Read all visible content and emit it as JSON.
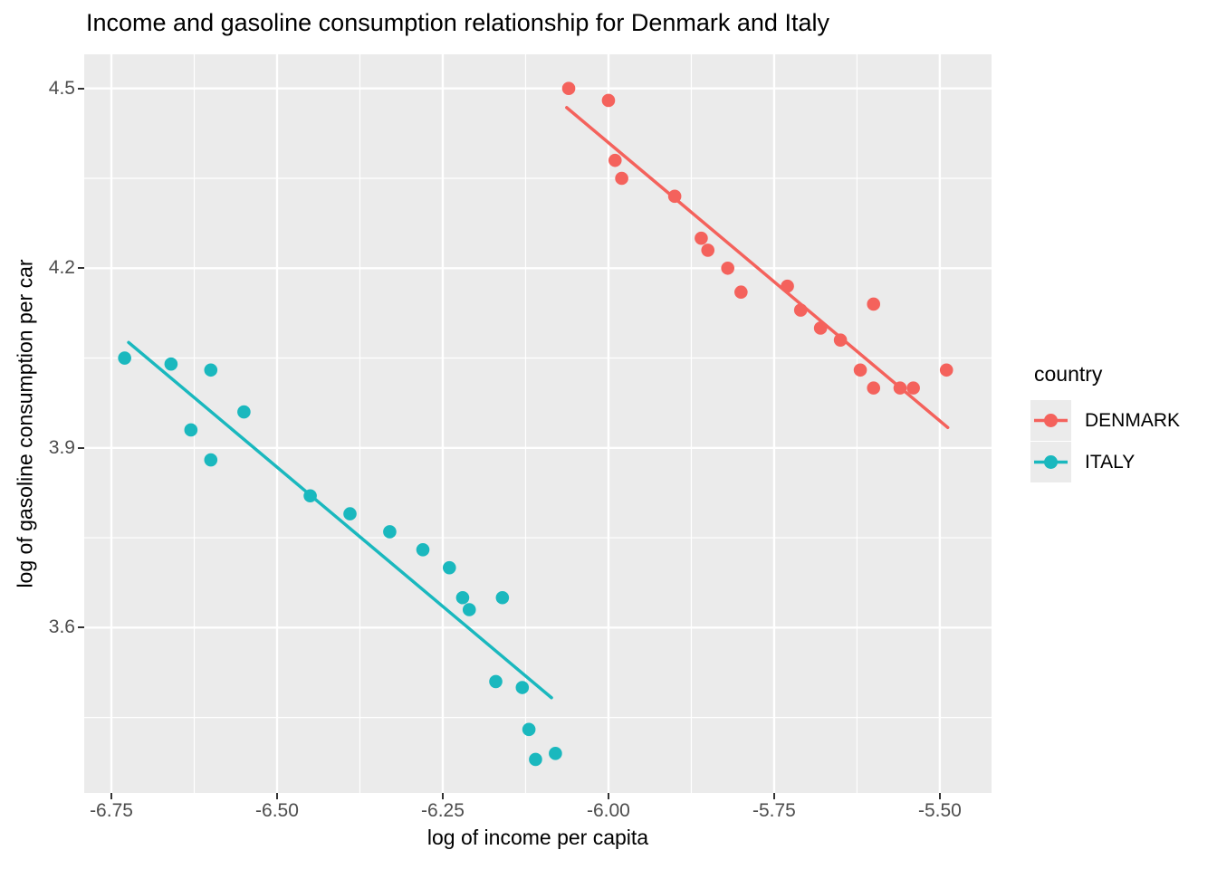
{
  "chart_data": {
    "type": "scatter",
    "title": "Income and gasoline consumption relationship for Denmark and Italy",
    "xlabel": "log of income per capita",
    "ylabel": "log of gasoline consumption per car",
    "xlim": [
      -6.791,
      -5.422
    ],
    "ylim": [
      3.324,
      4.557
    ],
    "x_ticks": [
      -6.75,
      -6.5,
      -6.25,
      -6.0,
      -5.75,
      -5.5
    ],
    "x_tick_labels": [
      "-6.75",
      "-6.50",
      "-6.25",
      "-6.00",
      "-5.75",
      "-5.50"
    ],
    "x_minor_ticks": [
      -6.625,
      -6.375,
      -6.125,
      -5.875,
      -5.625
    ],
    "y_ticks": [
      4.5,
      4.2,
      3.9,
      3.6
    ],
    "y_tick_labels": [
      "4.5",
      "4.2",
      "3.9",
      "3.6"
    ],
    "y_minor_ticks": [
      4.35,
      4.05,
      3.75,
      3.45
    ],
    "grid": true,
    "panel_bg": "#EBEBEB",
    "grid_color": "#FFFFFF",
    "tick_color": "#333333",
    "tick_label_color": "#4D4D4D",
    "legend": {
      "title": "country",
      "position": "right",
      "entries": [
        {
          "label": "DENMARK",
          "color": "#F4625C"
        },
        {
          "label": "ITALY",
          "color": "#1AB8BE"
        }
      ]
    },
    "series": [
      {
        "name": "DENMARK",
        "color": "#F4625C",
        "points": [
          [
            -6.06,
            4.5
          ],
          [
            -6.0,
            4.48
          ],
          [
            -5.99,
            4.38
          ],
          [
            -5.98,
            4.35
          ],
          [
            -5.9,
            4.32
          ],
          [
            -5.86,
            4.25
          ],
          [
            -5.85,
            4.23
          ],
          [
            -5.82,
            4.2
          ],
          [
            -5.8,
            4.16
          ],
          [
            -5.73,
            4.17
          ],
          [
            -5.71,
            4.13
          ],
          [
            -5.68,
            4.1
          ],
          [
            -5.65,
            4.08
          ],
          [
            -5.6,
            4.14
          ],
          [
            -5.62,
            4.03
          ],
          [
            -5.6,
            4.0
          ],
          [
            -5.56,
            4.0
          ],
          [
            -5.54,
            4.0
          ],
          [
            -5.49,
            4.03
          ]
        ],
        "trend_line": [
          [
            -6.063,
            4.468
          ],
          [
            -5.488,
            3.934
          ]
        ]
      },
      {
        "name": "ITALY",
        "color": "#1AB8BE",
        "points": [
          [
            -6.73,
            4.05
          ],
          [
            -6.66,
            4.04
          ],
          [
            -6.6,
            4.03
          ],
          [
            -6.63,
            3.93
          ],
          [
            -6.6,
            3.88
          ],
          [
            -6.55,
            3.96
          ],
          [
            -6.45,
            3.82
          ],
          [
            -6.39,
            3.79
          ],
          [
            -6.33,
            3.76
          ],
          [
            -6.28,
            3.73
          ],
          [
            -6.24,
            3.7
          ],
          [
            -6.22,
            3.65
          ],
          [
            -6.21,
            3.63
          ],
          [
            -6.16,
            3.65
          ],
          [
            -6.17,
            3.51
          ],
          [
            -6.13,
            3.5
          ],
          [
            -6.12,
            3.43
          ],
          [
            -6.11,
            3.38
          ],
          [
            -6.08,
            3.39
          ]
        ],
        "trend_line": [
          [
            -6.724,
            4.076
          ],
          [
            -6.086,
            3.483
          ]
        ]
      }
    ]
  }
}
